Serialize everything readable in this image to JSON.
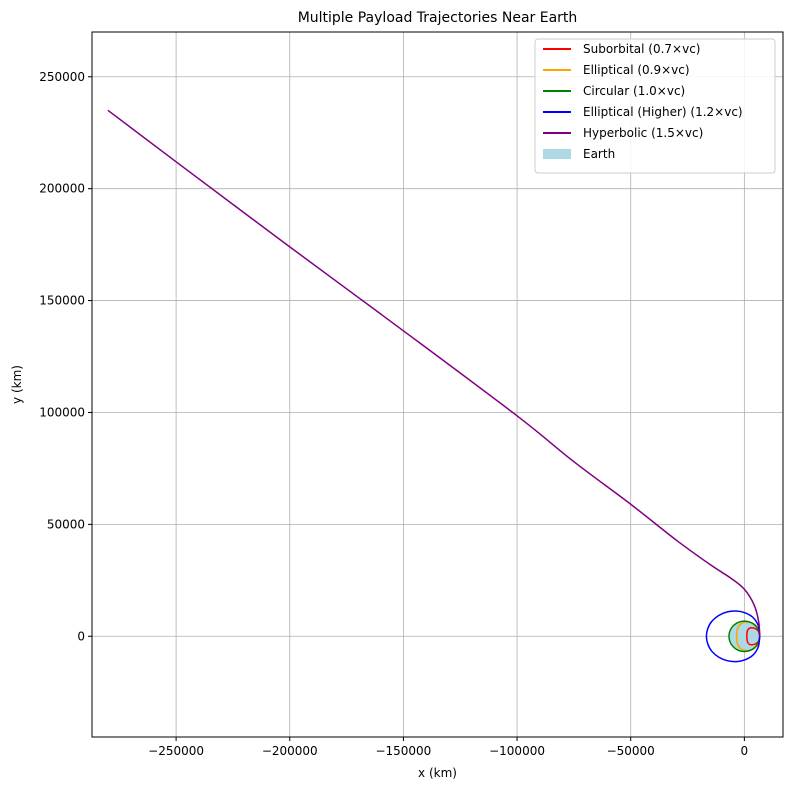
{
  "chart_data": {
    "type": "line",
    "title": "Multiple Payload Trajectories Near Earth",
    "xlabel": "x (km)",
    "ylabel": "y (km)",
    "xlim": [
      -287000,
      17000
    ],
    "ylim": [
      -45000,
      270000
    ],
    "xticks": [
      -250000,
      -200000,
      -150000,
      -100000,
      -50000,
      0
    ],
    "xtick_labels": [
      "−250000",
      "−200000",
      "−150000",
      "−100000",
      "−50000",
      "0"
    ],
    "yticks": [
      0,
      50000,
      100000,
      150000,
      200000,
      250000
    ],
    "ytick_labels": [
      "0",
      "50000",
      "100000",
      "150000",
      "200000",
      "250000"
    ],
    "grid": true,
    "legend_position": "top-right",
    "earth": {
      "name": "Earth",
      "color": "#add8e6",
      "center": [
        0,
        0
      ],
      "radius": 6371
    },
    "series": [
      {
        "name": "Suborbital (0.7×vc)",
        "color": "#ff0000",
        "points": [
          [
            6771,
            0
          ],
          [
            6300,
            2000
          ],
          [
            5400,
            3100
          ],
          [
            4000,
            3700
          ],
          [
            2500,
            3700
          ],
          [
            1600,
            3000
          ],
          [
            1200,
            1800
          ],
          [
            1100,
            0
          ],
          [
            1200,
            -1800
          ],
          [
            1600,
            -3000
          ],
          [
            2500,
            -3700
          ],
          [
            4000,
            -3700
          ],
          [
            5400,
            -3100
          ],
          [
            6300,
            -2000
          ],
          [
            6771,
            0
          ]
        ]
      },
      {
        "name": "Elliptical (0.9×vc)",
        "color": "#ffa500",
        "points": [
          [
            6771,
            0
          ],
          [
            6200,
            3000
          ],
          [
            4800,
            5100
          ],
          [
            2800,
            6200
          ],
          [
            700,
            6400
          ],
          [
            -1300,
            5700
          ],
          [
            -2700,
            4200
          ],
          [
            -3300,
            2300
          ],
          [
            -3400,
            0
          ],
          [
            -3300,
            -2300
          ],
          [
            -2700,
            -4200
          ],
          [
            -1300,
            -5700
          ],
          [
            700,
            -6400
          ],
          [
            2800,
            -6200
          ],
          [
            4800,
            -5100
          ],
          [
            6200,
            -3000
          ],
          [
            6771,
            0
          ]
        ]
      },
      {
        "name": "Circular (1.0×vc)",
        "color": "#008000",
        "points": [
          [
            6771,
            0
          ],
          [
            6360,
            2316
          ],
          [
            5187,
            4352
          ],
          [
            3386,
            5864
          ],
          [
            1176,
            6668
          ],
          [
            -1176,
            6668
          ],
          [
            -3386,
            5864
          ],
          [
            -5187,
            4352
          ],
          [
            -6360,
            2316
          ],
          [
            -6771,
            0
          ],
          [
            -6360,
            -2316
          ],
          [
            -5187,
            -4352
          ],
          [
            -3386,
            -5864
          ],
          [
            -1176,
            -6668
          ],
          [
            1176,
            -6668
          ],
          [
            3386,
            -5864
          ],
          [
            5187,
            -4352
          ],
          [
            6360,
            -2316
          ],
          [
            6771,
            0
          ]
        ]
      },
      {
        "name": "Elliptical (Higher) (1.2×vc)",
        "color": "#0000ff",
        "points": [
          [
            6771,
            0
          ],
          [
            6100,
            4800
          ],
          [
            3800,
            8400
          ],
          [
            300,
            10500
          ],
          [
            -3600,
            11300
          ],
          [
            -7500,
            10900
          ],
          [
            -11300,
            9300
          ],
          [
            -14400,
            6600
          ],
          [
            -16100,
            3400
          ],
          [
            -16700,
            0
          ],
          [
            -16100,
            -3400
          ],
          [
            -14400,
            -6600
          ],
          [
            -11300,
            -9300
          ],
          [
            -7500,
            -10900
          ],
          [
            -3600,
            -11300
          ],
          [
            300,
            -10500
          ],
          [
            3800,
            -8400
          ],
          [
            6100,
            -4800
          ],
          [
            6771,
            0
          ]
        ]
      },
      {
        "name": "Hyperbolic (1.5×vc)",
        "color": "#800080",
        "points": [
          [
            6771,
            0
          ],
          [
            6300,
            6500
          ],
          [
            4300,
            14000
          ],
          [
            0,
            21000
          ],
          [
            -6000,
            26000
          ],
          [
            -15000,
            32000
          ],
          [
            -30000,
            43000
          ],
          [
            -50000,
            59000
          ],
          [
            -75000,
            78000
          ],
          [
            -100000,
            98500
          ],
          [
            -150000,
            136500
          ],
          [
            -200000,
            174000
          ],
          [
            -250000,
            212000
          ],
          [
            -280000,
            235000
          ]
        ]
      }
    ]
  }
}
